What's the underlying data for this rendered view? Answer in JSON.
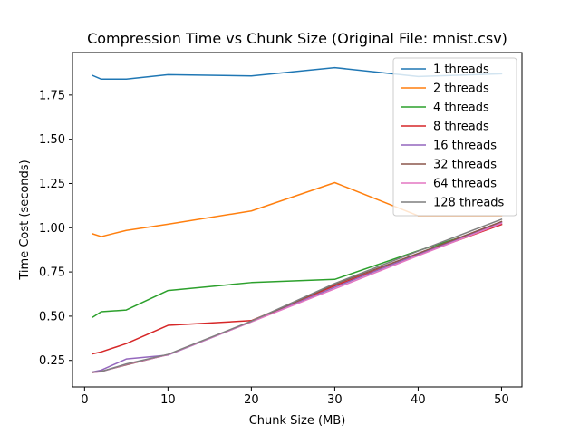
{
  "chart_data": {
    "type": "line",
    "title": "Compression Time vs Chunk Size (Original File: mnist.csv)",
    "xlabel": "Chunk Size (MB)",
    "ylabel": "Time Cost (seconds)",
    "x": [
      1,
      2,
      5,
      10,
      20,
      30,
      40,
      50
    ],
    "xlim": [
      -1.45,
      52.45
    ],
    "ylim": [
      0.1,
      1.99
    ],
    "xticks": [
      0,
      10,
      20,
      30,
      40,
      50
    ],
    "yticks": [
      0.25,
      0.5,
      0.75,
      1.0,
      1.25,
      1.5,
      1.75
    ],
    "ytick_labels": [
      "0.25",
      "0.50",
      "0.75",
      "1.00",
      "1.25",
      "1.50",
      "1.75"
    ],
    "grid": false,
    "legend_position": "top-right",
    "series": [
      {
        "name": "1 threads",
        "color": "#1f77b4",
        "values": [
          1.86,
          1.84,
          1.84,
          1.865,
          1.858,
          1.905,
          1.855,
          1.87
        ]
      },
      {
        "name": "2 threads",
        "color": "#ff7f0e",
        "values": [
          0.965,
          0.95,
          0.985,
          1.02,
          1.095,
          1.255,
          1.068,
          1.068
        ]
      },
      {
        "name": "4 threads",
        "color": "#2ca02c",
        "values": [
          0.495,
          0.525,
          0.535,
          0.645,
          0.69,
          0.708,
          0.87,
          1.02
        ]
      },
      {
        "name": "8 threads",
        "color": "#d62728",
        "values": [
          0.288,
          0.298,
          0.345,
          0.448,
          0.475,
          0.672,
          0.848,
          1.018
        ]
      },
      {
        "name": "16 threads",
        "color": "#9467bd",
        "values": [
          0.185,
          0.195,
          0.258,
          0.28,
          0.468,
          0.664,
          0.85,
          1.03
        ]
      },
      {
        "name": "32 threads",
        "color": "#8c564b",
        "values": [
          0.182,
          0.188,
          0.225,
          0.283,
          0.47,
          0.68,
          0.855,
          1.035
        ]
      },
      {
        "name": "64 threads",
        "color": "#e377c2",
        "values": [
          0.183,
          0.186,
          0.228,
          0.282,
          0.468,
          0.655,
          0.842,
          1.025
        ]
      },
      {
        "name": "128 threads",
        "color": "#7f7f7f",
        "values": [
          0.184,
          0.187,
          0.23,
          0.284,
          0.472,
          0.685,
          0.868,
          1.048
        ]
      }
    ]
  }
}
